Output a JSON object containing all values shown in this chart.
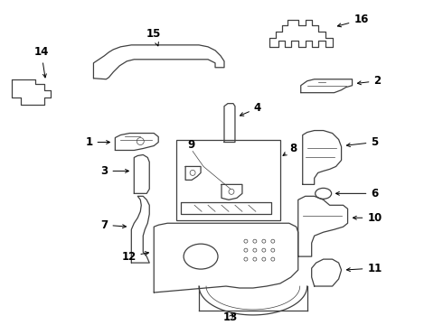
{
  "background_color": "#ffffff",
  "line_color": "#404040",
  "label_color": "#000000",
  "lw": 0.9,
  "label_fs": 8.5
}
